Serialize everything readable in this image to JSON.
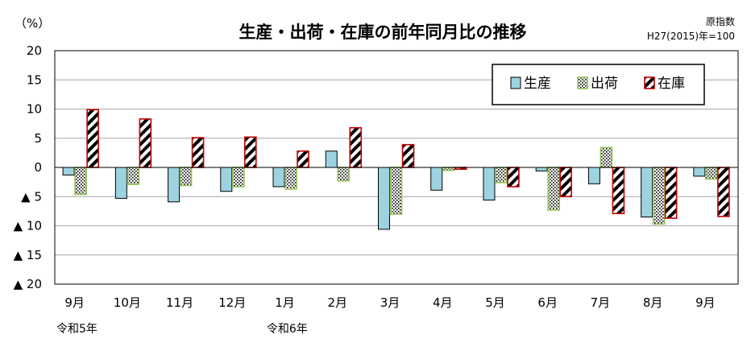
{
  "chart_data": {
    "type": "bar",
    "title": "生産・出荷・在庫の前年同月比の推移",
    "unit_label": "（%）",
    "index_note_1": "原指数",
    "index_note_2": "H27(2015)年=100",
    "ylim": [
      -20,
      20
    ],
    "yticks": [
      20,
      15,
      10,
      5,
      0,
      -5,
      -10,
      -15,
      -20
    ],
    "ytick_labels": [
      "20",
      "15",
      "10",
      "5",
      "0",
      "▲ 5",
      "▲ 10",
      "▲ 15",
      "▲ 20"
    ],
    "categories": [
      "9月",
      "10月",
      "11月",
      "12月",
      "1月",
      "2月",
      "3月",
      "4月",
      "5月",
      "6月",
      "7月",
      "8月",
      "9月"
    ],
    "year_labels": [
      {
        "category_index": 0,
        "label": "令和5年"
      },
      {
        "category_index": 4,
        "label": "令和6年"
      }
    ],
    "legend_position": "top-right",
    "series": [
      {
        "name": "生産",
        "pattern": "solid",
        "color": "#9dd3e0",
        "values": [
          -1.3,
          -5.3,
          -5.9,
          -4.1,
          -3.3,
          2.8,
          -10.6,
          -3.9,
          -5.6,
          -0.6,
          -2.8,
          -8.5,
          -1.5
        ]
      },
      {
        "name": "出荷",
        "pattern": "dots",
        "color": "#92c153",
        "values": [
          -4.6,
          -2.9,
          -3.1,
          -3.3,
          -3.7,
          -2.3,
          -8.0,
          -0.5,
          -2.6,
          -7.3,
          3.4,
          -9.7,
          -2.0
        ]
      },
      {
        "name": "在庫",
        "pattern": "stripes",
        "color": "#c00000",
        "values": [
          9.9,
          8.3,
          5.1,
          5.2,
          2.8,
          6.8,
          3.9,
          -0.3,
          -3.3,
          -5.0,
          -7.9,
          -8.7,
          -8.4
        ]
      }
    ]
  }
}
